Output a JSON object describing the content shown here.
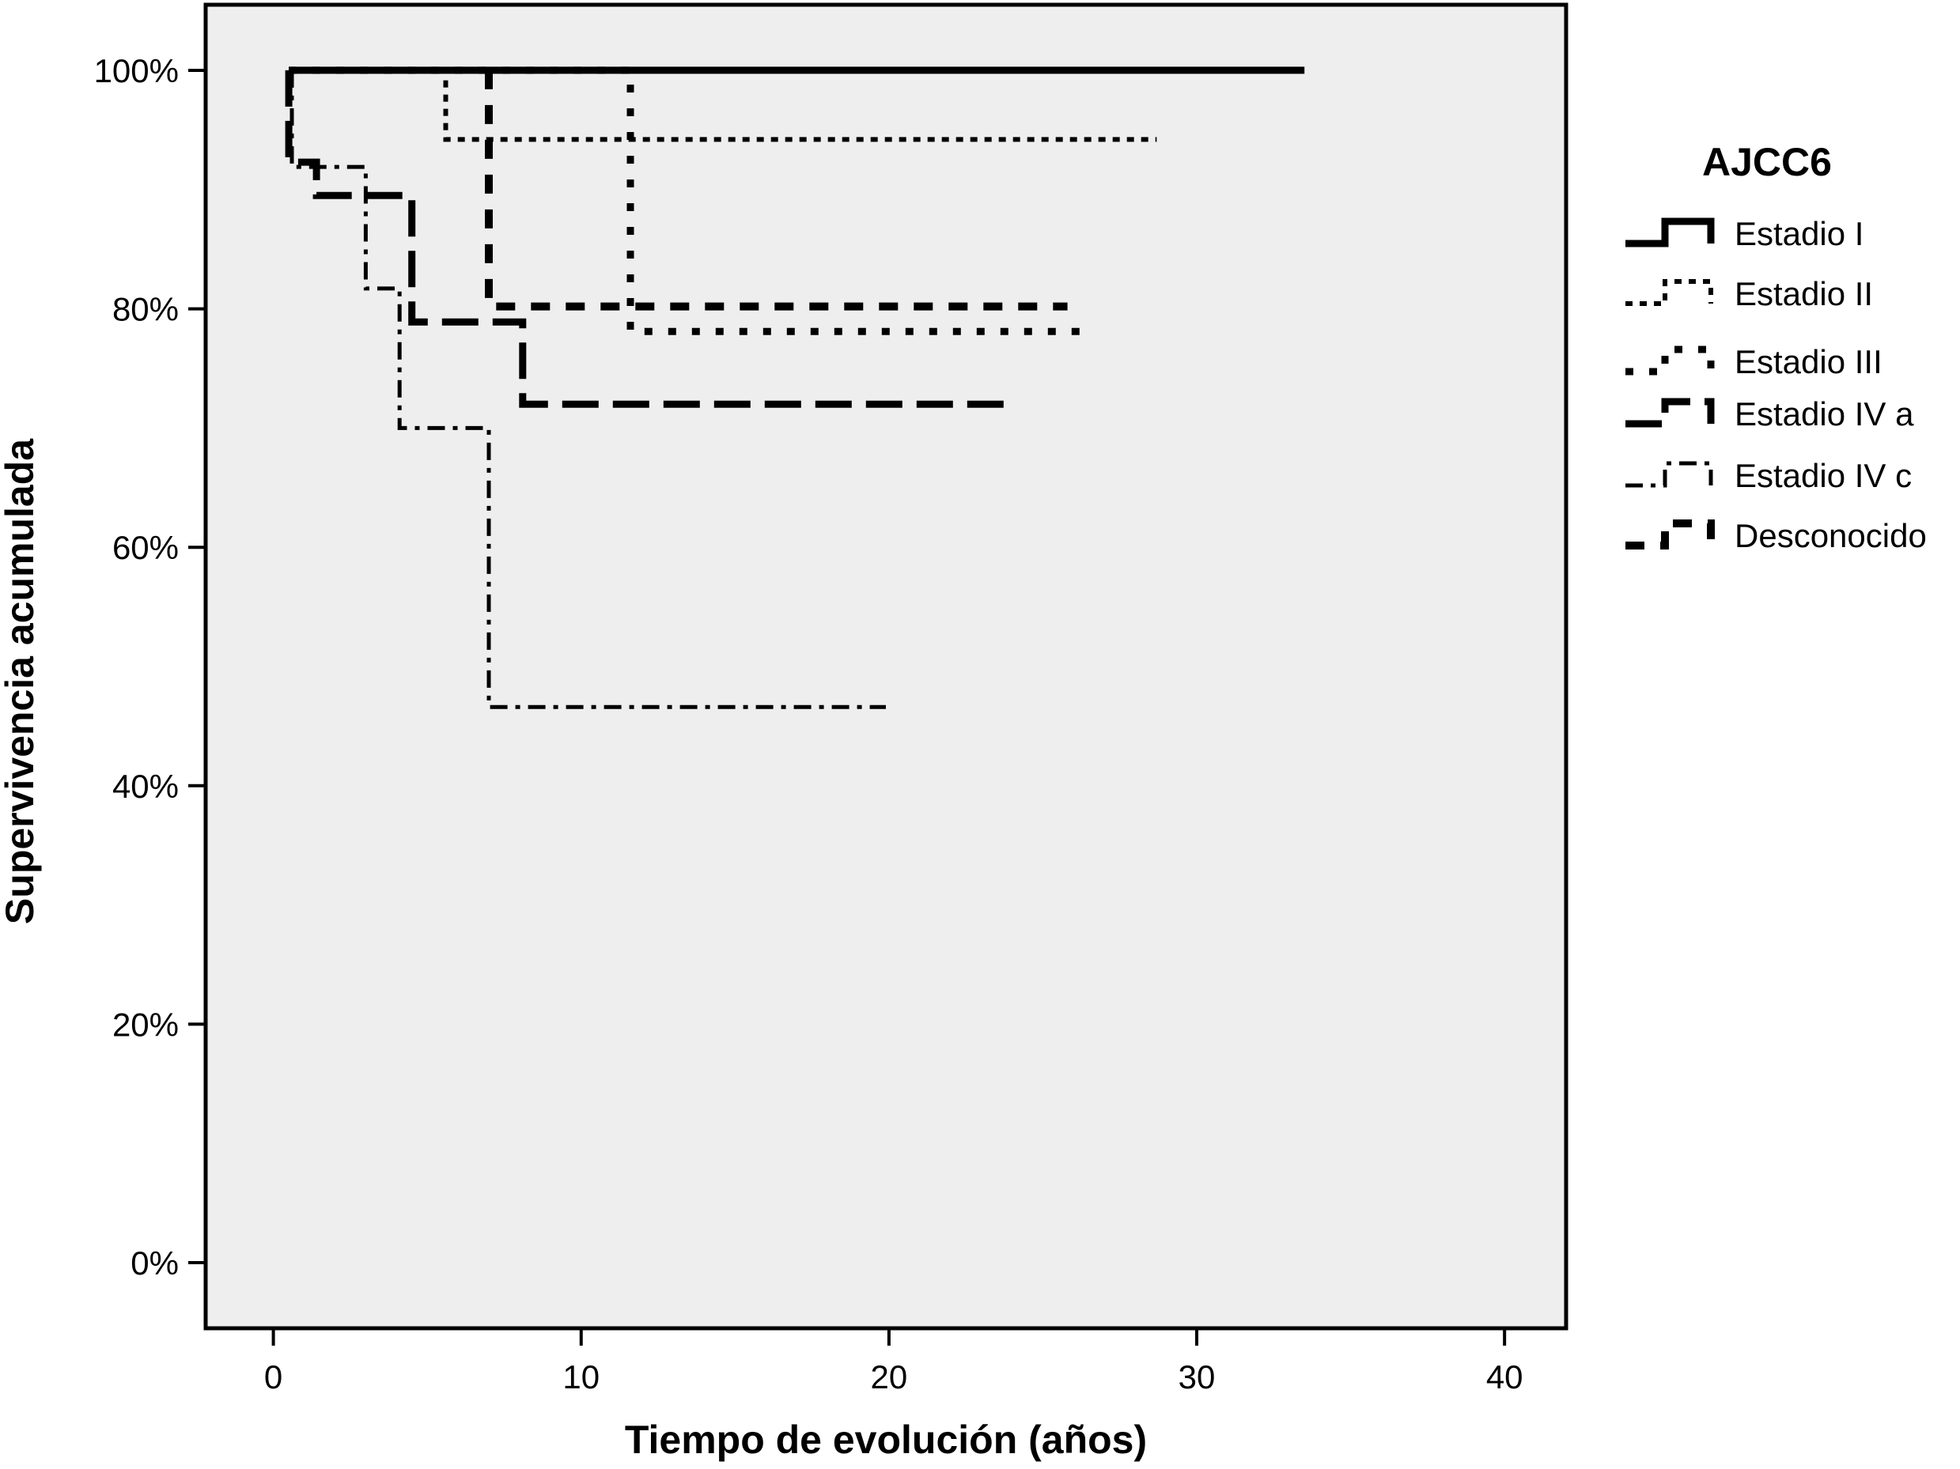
{
  "chart_data": {
    "type": "line",
    "title": "",
    "xlabel": "Tiempo de evolución (años)",
    "ylabel": "Supervivencia acumulada",
    "xlim": [
      -2.2,
      42
    ],
    "ylim": [
      -5.5,
      105.5
    ],
    "x_ticks": [
      0,
      10,
      20,
      30,
      40
    ],
    "x_tick_labels": [
      "0",
      "10",
      "20",
      "30",
      "40"
    ],
    "y_ticks": [
      0,
      20,
      40,
      60,
      80,
      100
    ],
    "y_tick_labels": [
      "0%",
      "20%",
      "40%",
      "60%",
      "80%",
      "100%"
    ],
    "grid": false,
    "plot_background": "#eeeeee",
    "legend": {
      "title": "AJCC6",
      "position": "right"
    },
    "series": [
      {
        "name": "Estadio I",
        "style": "solid",
        "points": [
          [
            0.5,
            100
          ],
          [
            33.5,
            100
          ]
        ]
      },
      {
        "name": "Estadio II",
        "style": "fine-dotted",
        "points": [
          [
            5,
            100
          ],
          [
            5.6,
            100
          ],
          [
            5.6,
            94.2
          ],
          [
            28.7,
            94.2
          ]
        ]
      },
      {
        "name": "Estadio III",
        "style": "dotted",
        "points": [
          [
            0.5,
            100
          ],
          [
            11.6,
            100
          ],
          [
            11.6,
            94
          ],
          [
            11.6,
            78.1
          ],
          [
            26.5,
            78.1
          ]
        ]
      },
      {
        "name": "Estadio IV a",
        "style": "long-dash",
        "points": [
          [
            0.5,
            100
          ],
          [
            0.5,
            92.3
          ],
          [
            1.4,
            92.3
          ],
          [
            1.4,
            89.5
          ],
          [
            4.5,
            89.5
          ],
          [
            4.5,
            78.9
          ],
          [
            8.1,
            78.9
          ],
          [
            8.1,
            72
          ],
          [
            23.9,
            72
          ]
        ]
      },
      {
        "name": "Estadio IV c",
        "style": "dash-dot",
        "points": [
          [
            0.6,
            100
          ],
          [
            0.6,
            91.9
          ],
          [
            3,
            91.9
          ],
          [
            3,
            81.7
          ],
          [
            4.1,
            81.7
          ],
          [
            4.1,
            70
          ],
          [
            7,
            70
          ],
          [
            7,
            46.6
          ],
          [
            19.9,
            46.6
          ]
        ]
      },
      {
        "name": "Desconocido",
        "style": "heavy-dash",
        "points": [
          [
            7,
            100
          ],
          [
            7,
            80.2
          ],
          [
            25.8,
            80.2
          ]
        ]
      }
    ]
  }
}
